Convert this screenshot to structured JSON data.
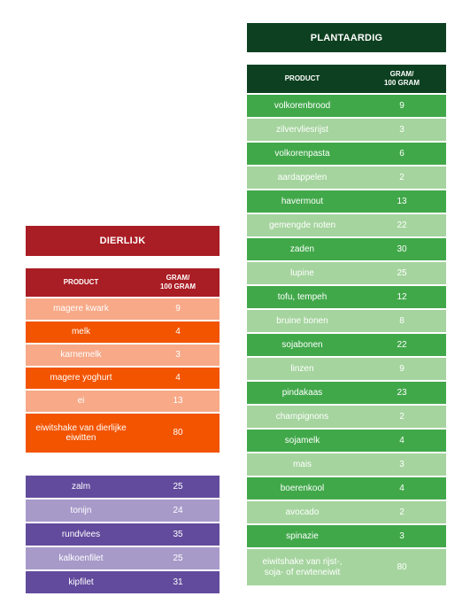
{
  "dierlijk": {
    "title": "DIERLIJK",
    "header": {
      "product": "PRODUCT",
      "gram_line1": "GRAM/",
      "gram_line2": "100 GRAM"
    },
    "rows": [
      {
        "product": "magere kwark",
        "gram": "9"
      },
      {
        "product": "melk",
        "gram": "4"
      },
      {
        "product": "karnemelk",
        "gram": "3"
      },
      {
        "product": "magere yoghurt",
        "gram": "4"
      },
      {
        "product": "ei",
        "gram": "13"
      },
      {
        "product": "eiwitshake van dierlijke eiwitten",
        "gram": "80"
      }
    ]
  },
  "vis_vlees": {
    "rows": [
      {
        "product": "zalm",
        "gram": "25"
      },
      {
        "product": "tonijn",
        "gram": "24"
      },
      {
        "product": "rundvlees",
        "gram": "35"
      },
      {
        "product": "kalkoenfilet",
        "gram": "25"
      },
      {
        "product": "kipfilet",
        "gram": "31"
      }
    ]
  },
  "plantaardig": {
    "title": "PLANTAARDIG",
    "header": {
      "product": "PRODUCT",
      "gram_line1": "GRAM/",
      "gram_line2": "100 GRAM"
    },
    "rows": [
      {
        "product": "volkorenbrood",
        "gram": "9"
      },
      {
        "product": "zilvervliesrijst",
        "gram": "3"
      },
      {
        "product": "volkorenpasta",
        "gram": "6"
      },
      {
        "product": "aardappelen",
        "gram": "2"
      },
      {
        "product": "havermout",
        "gram": "13"
      },
      {
        "product": "gemengde noten",
        "gram": "22"
      },
      {
        "product": "zaden",
        "gram": "30"
      },
      {
        "product": "lupine",
        "gram": "25"
      },
      {
        "product": "tofu, tempeh",
        "gram": "12"
      },
      {
        "product": "bruine bonen",
        "gram": "8"
      },
      {
        "product": "sojabonen",
        "gram": "22"
      },
      {
        "product": "linzen",
        "gram": "9"
      },
      {
        "product": "pindakaas",
        "gram": "23"
      },
      {
        "product": "champignons",
        "gram": "2"
      },
      {
        "product": "sojamelk",
        "gram": "4"
      },
      {
        "product": "mais",
        "gram": "3"
      },
      {
        "product": "boerenkool",
        "gram": "4"
      },
      {
        "product": "avocado",
        "gram": "2"
      },
      {
        "product": "spinazie",
        "gram": "3"
      },
      {
        "product": "eiwitshake van rijst-, soja- of erwteneiwit",
        "gram": "80"
      }
    ]
  },
  "colors": {
    "dierlijk_header": "#a91d24",
    "dierlijk_dark": "#f25400",
    "dierlijk_light": "#f7a988",
    "vis_dark": "#624b9d",
    "vis_light": "#a79ac9",
    "plant_header": "#0d4020",
    "plant_dark": "#41a84a",
    "plant_light": "#a5d49e"
  }
}
